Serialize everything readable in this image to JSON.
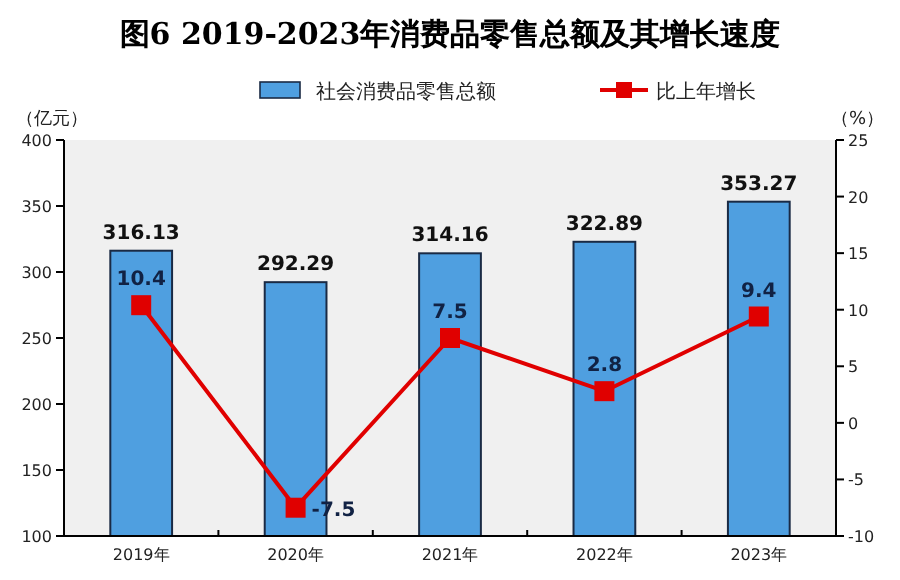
{
  "chart_data": {
    "type": "bar",
    "title": "图6  2019-2023年消费品零售总额及其增长速度",
    "ylabel": "（亿元）",
    "y2label": "（%）",
    "categories": [
      "2019年",
      "2020年",
      "2021年",
      "2022年",
      "2023年"
    ],
    "series": [
      {
        "name": "社会消费品零售总额",
        "color": "#4f9fe0",
        "values": [
          316.13,
          292.29,
          314.16,
          322.89,
          353.27
        ]
      },
      {
        "name": "比上年增长",
        "type": "line",
        "axis": "y2",
        "color": "#e00000",
        "marker": "square",
        "values": [
          10.4,
          -7.5,
          7.5,
          2.8,
          9.4
        ]
      }
    ],
    "ylim": [
      100,
      400
    ],
    "yticks": [
      100,
      150,
      200,
      250,
      300,
      350,
      400
    ],
    "y2lim": [
      -10,
      25
    ],
    "y2ticks": [
      -10,
      -5,
      0,
      5,
      10,
      15,
      20,
      25
    ],
    "data_labels": true,
    "legend": "top",
    "grid": false
  }
}
